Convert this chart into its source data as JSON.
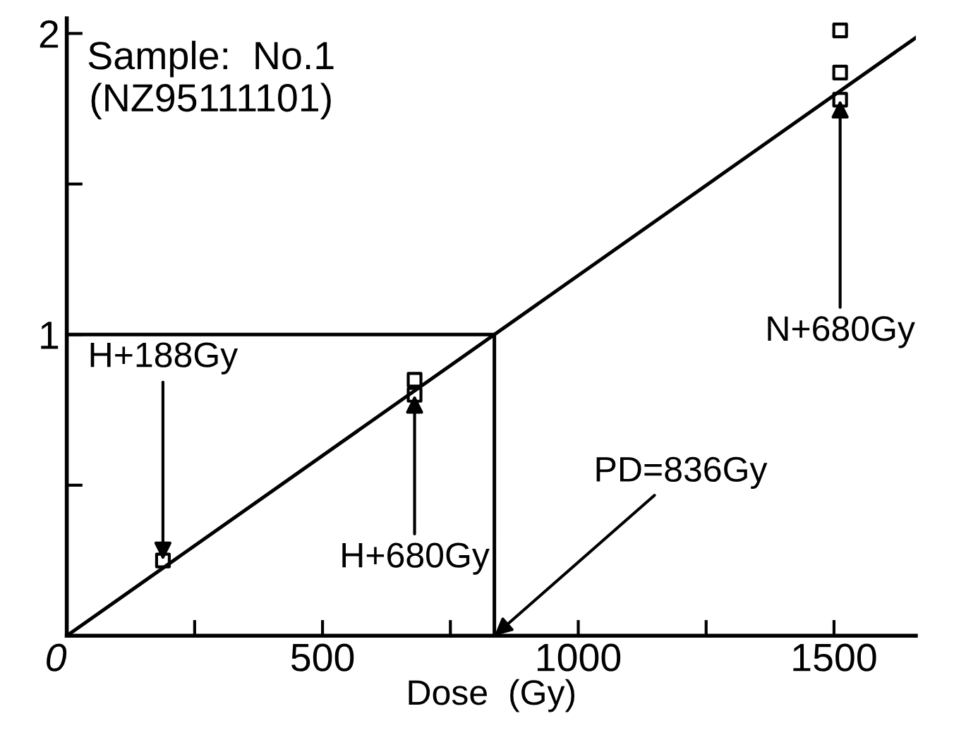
{
  "chart_data": {
    "type": "scatter",
    "title": "Sample:  No.1\n(NZ95111101)",
    "xlabel": "Dose  (Gy)",
    "xlim": [
      0,
      1660
    ],
    "ylim": [
      0,
      2.05
    ],
    "xticks": [
      {
        "value": 0,
        "label": "0"
      },
      {
        "value": 250,
        "label": null
      },
      500,
      {
        "value": 750,
        "label": null
      },
      1000,
      {
        "value": 1250,
        "label": null
      },
      1500
    ],
    "yticks": [
      {
        "value": 0,
        "label": null
      },
      {
        "value": 0.5,
        "label": null
      },
      1,
      {
        "value": 1.5,
        "label": null
      },
      2
    ],
    "grid": false,
    "legend": false,
    "series": [
      {
        "marker": "square",
        "color": "#000000",
        "x": [
          188,
          680,
          680,
          1512,
          1512,
          1512
        ],
        "values": [
          0.25,
          0.85,
          0.8,
          2.01,
          1.87,
          1.78
        ]
      },
      {
        "type": "line",
        "color": "#000000",
        "x": [
          0,
          1660
        ],
        "values": [
          0,
          1.986
        ]
      },
      {
        "type": "line",
        "color": "#000000",
        "x": [
          0,
          836,
          836
        ],
        "values": [
          1,
          1,
          0
        ]
      }
    ],
    "annotations": [
      {
        "text": "H+188Gy",
        "x": 188,
        "y": 0.25
      },
      {
        "text": "H+680Gy",
        "x": 680,
        "y": 0.8
      },
      {
        "text": "PD=836Gy",
        "x": 836,
        "y": 0
      },
      {
        "text": "N+680Gy",
        "x": 1512,
        "y": 1.78
      }
    ]
  }
}
